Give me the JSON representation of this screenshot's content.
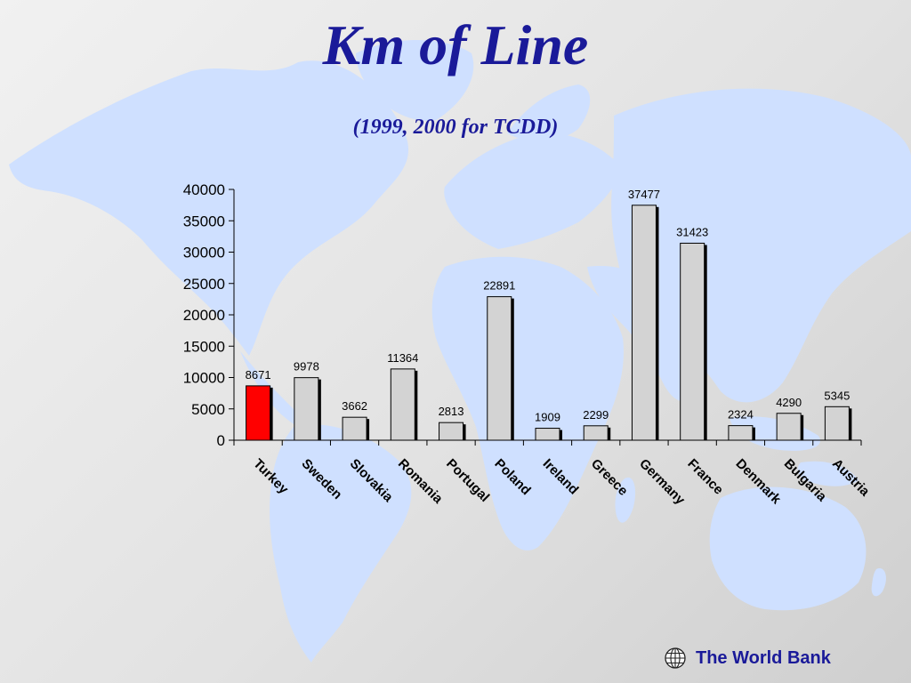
{
  "slide": {
    "title": "Km of Line",
    "subtitle": "(1999, 2000 for TCDD)",
    "footer": "The World Bank",
    "colors": {
      "title": "#1a1a99",
      "map": "#cfe0ff",
      "bar": "#d3d3d3",
      "highlight": "#ff0000"
    },
    "logo_icon": "globe-icon"
  },
  "chart_data": {
    "type": "bar",
    "categories": [
      "Turkey",
      "Sweden",
      "Slovakia",
      "Romania",
      "Portugal",
      "Poland",
      "Ireland",
      "Greece",
      "Germany",
      "France",
      "Denmark",
      "Bulgaria",
      "Austria"
    ],
    "values": [
      8671,
      9978,
      3662,
      11364,
      2813,
      22891,
      1909,
      2299,
      37477,
      31423,
      2324,
      4290,
      5345
    ],
    "highlight_category": "Turkey",
    "ylim": [
      0,
      40000
    ],
    "yticks": [
      "0",
      "5000",
      "10000",
      "15000",
      "20000",
      "25000",
      "30000",
      "35000",
      "40000"
    ],
    "xlabel": "",
    "ylabel": "",
    "grid": false,
    "legend": "none"
  }
}
